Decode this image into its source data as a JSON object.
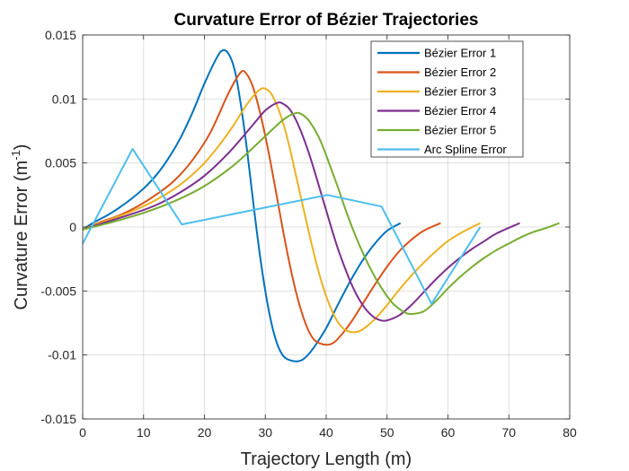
{
  "chart_data": {
    "type": "line",
    "title": "Curvature Error of Bézier Trajectories",
    "xlabel": "Trajectory Length (m)",
    "ylabel_main": "Curvature Error (m",
    "ylabel_sup": "-1",
    "ylabel_close": ")",
    "xlim": [
      0,
      80
    ],
    "ylim": [
      -0.015,
      0.015
    ],
    "x_ticks": [
      0,
      10,
      20,
      30,
      40,
      50,
      60,
      70,
      80
    ],
    "x_tick_labels": [
      "0",
      "10",
      "20",
      "30",
      "40",
      "50",
      "60",
      "70",
      "80"
    ],
    "y_ticks": [
      -0.015,
      -0.01,
      -0.005,
      0,
      0.005,
      0.01,
      0.015
    ],
    "y_tick_labels": [
      "-0.015",
      "-0.01",
      "-0.005",
      "0",
      "0.005",
      "0.01",
      "0.015"
    ],
    "grid": true,
    "legend_position": "top-right",
    "series": [
      {
        "name": "Bézier Error 1",
        "color": "#0072BD",
        "x": [
          0,
          2,
          4,
          6,
          8,
          10,
          12,
          14,
          16,
          18,
          20,
          22,
          23,
          24,
          25,
          26,
          27,
          28,
          29,
          30,
          31,
          32,
          33,
          34,
          35,
          36,
          37,
          38,
          40,
          42,
          44,
          46,
          48,
          50,
          52.2
        ],
        "y": [
          -0.0002,
          0.0004,
          0.0009,
          0.0015,
          0.0022,
          0.003,
          0.004,
          0.0053,
          0.0069,
          0.0089,
          0.0112,
          0.0132,
          0.0138,
          0.0135,
          0.0122,
          0.0095,
          0.006,
          0.002,
          -0.0018,
          -0.005,
          -0.0075,
          -0.0092,
          -0.0101,
          -0.0104,
          -0.0105,
          -0.0104,
          -0.01,
          -0.0094,
          -0.0079,
          -0.006,
          -0.0042,
          -0.0026,
          -0.0013,
          -0.0003,
          0.0003
        ]
      },
      {
        "name": "Bézier Error 2",
        "color": "#D95319",
        "x": [
          0,
          3,
          6,
          9,
          12,
          15,
          18,
          21,
          24,
          26,
          27,
          28,
          29,
          30,
          31,
          32,
          33,
          34,
          35,
          36,
          37,
          38,
          39,
          40,
          41,
          42,
          44,
          46,
          48,
          50,
          52,
          54,
          56,
          58.8
        ],
        "y": [
          -0.0002,
          0.0004,
          0.0009,
          0.0016,
          0.0025,
          0.0036,
          0.0052,
          0.0074,
          0.0105,
          0.0121,
          0.0119,
          0.0109,
          0.0092,
          0.0071,
          0.0047,
          0.0021,
          -0.0005,
          -0.0029,
          -0.005,
          -0.0067,
          -0.008,
          -0.0088,
          -0.0091,
          -0.0092,
          -0.0091,
          -0.0087,
          -0.0075,
          -0.006,
          -0.0045,
          -0.0031,
          -0.0019,
          -0.001,
          -0.0003,
          0.0003
        ]
      },
      {
        "name": "Bézier Error 3",
        "color": "#EDB120",
        "x": [
          0,
          4,
          8,
          12,
          16,
          20,
          24,
          27,
          29,
          30,
          31,
          32,
          33,
          34,
          35,
          36,
          37,
          38,
          39,
          40,
          41,
          42,
          43,
          44,
          45,
          46,
          48,
          50,
          52,
          54,
          56,
          58,
          60,
          62,
          65.3
        ],
        "y": [
          -0.0002,
          0.0005,
          0.0012,
          0.0021,
          0.0033,
          0.005,
          0.0074,
          0.0096,
          0.0107,
          0.0108,
          0.0104,
          0.0094,
          0.008,
          0.0062,
          0.0041,
          0.002,
          -0.0001,
          -0.0021,
          -0.0039,
          -0.0054,
          -0.0066,
          -0.0075,
          -0.008,
          -0.0082,
          -0.0082,
          -0.008,
          -0.0072,
          -0.0061,
          -0.0049,
          -0.0038,
          -0.0028,
          -0.0019,
          -0.0011,
          -0.0005,
          0.0003
        ]
      },
      {
        "name": "Bézier Error 4",
        "color": "#7E2F8E",
        "x": [
          0,
          4,
          8,
          12,
          16,
          20,
          24,
          28,
          30,
          32,
          33,
          34,
          35,
          36,
          37,
          38,
          39,
          40,
          41,
          42,
          43,
          44,
          45,
          46,
          47,
          48,
          49,
          50,
          52,
          54,
          56,
          58,
          60,
          62,
          64,
          66,
          68,
          71.8
        ],
        "y": [
          -0.0002,
          0.0004,
          0.001,
          0.0017,
          0.0027,
          0.004,
          0.0058,
          0.008,
          0.0091,
          0.0097,
          0.0096,
          0.0092,
          0.0084,
          0.0073,
          0.006,
          0.0045,
          0.0029,
          0.0013,
          -0.0003,
          -0.0018,
          -0.0031,
          -0.0043,
          -0.0053,
          -0.0061,
          -0.0067,
          -0.0071,
          -0.0073,
          -0.0073,
          -0.0069,
          -0.0061,
          -0.0051,
          -0.0041,
          -0.0032,
          -0.0024,
          -0.0017,
          -0.0011,
          -0.0005,
          0.0003
        ]
      },
      {
        "name": "Bézier Error 5",
        "color": "#77AC30",
        "x": [
          0,
          5,
          10,
          15,
          20,
          25,
          30,
          33,
          35,
          36,
          37,
          38,
          39,
          40,
          41,
          42,
          43,
          44,
          45,
          46,
          47,
          48,
          49,
          50,
          51,
          52,
          53,
          54,
          56,
          58,
          60,
          62,
          64,
          66,
          68,
          70,
          72,
          74,
          76,
          78.3
        ],
        "y": [
          -0.0002,
          0.0004,
          0.0011,
          0.002,
          0.0032,
          0.0049,
          0.0071,
          0.0084,
          0.0089,
          0.0088,
          0.0084,
          0.0077,
          0.0068,
          0.0056,
          0.0043,
          0.003,
          0.0016,
          0.0003,
          -0.0009,
          -0.002,
          -0.003,
          -0.0039,
          -0.0047,
          -0.0054,
          -0.006,
          -0.0064,
          -0.0067,
          -0.0068,
          -0.0066,
          -0.0058,
          -0.0048,
          -0.0039,
          -0.0031,
          -0.0024,
          -0.0018,
          -0.0013,
          -0.0008,
          -0.0004,
          -0.0001,
          0.0003
        ]
      },
      {
        "name": "Arc Spline Error",
        "color": "#4DBEEE",
        "x": [
          0,
          8.2,
          16.3,
          40.2,
          49.1,
          57.3,
          65.3
        ],
        "y": [
          -0.0013,
          0.0061,
          0.0002,
          0.0025,
          0.0016,
          -0.006,
          0.0
        ]
      }
    ]
  }
}
